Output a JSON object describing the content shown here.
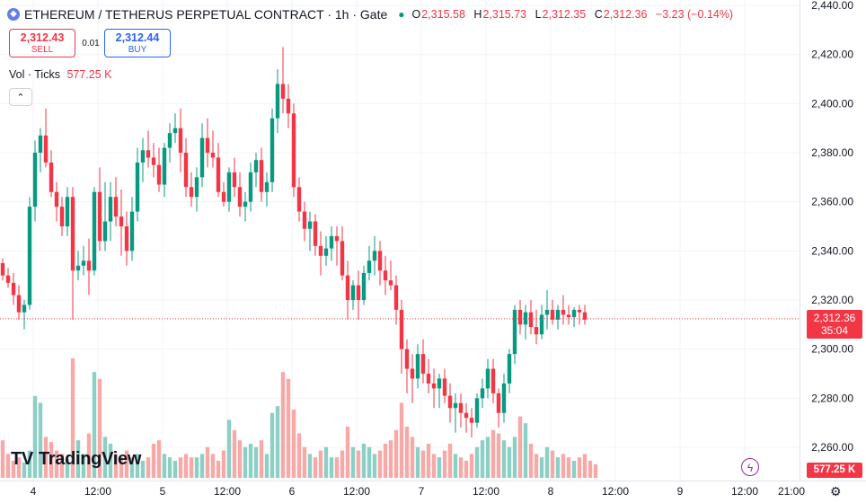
{
  "header": {
    "symbol_icon": "ethereum-icon",
    "title": "ETHEREUM / TETHERUS PERPETUAL CONTRACT · 1h · Gate",
    "status_dot": "●",
    "open_key": "O",
    "open": "2,315.58",
    "high_key": "H",
    "high": "2,315.73",
    "low_key": "L",
    "low": "2,312.35",
    "close_key": "C",
    "close": "2,312.36",
    "change": "−3.23 (−0.14%)"
  },
  "trade": {
    "sell_price": "2,312.43",
    "sell_label": "SELL",
    "spread": "0.01",
    "buy_price": "2,312.44",
    "buy_label": "BUY"
  },
  "volume": {
    "label": "Vol · Ticks",
    "value": "577.25 K"
  },
  "collapse_icon": "chevron-up-icon",
  "logo": {
    "mark": "TV",
    "text": "TradingView"
  },
  "last_price": {
    "price": "2,312.36",
    "countdown": "35:04"
  },
  "volume_tag": "577.25 K",
  "colors": {
    "up": "#089981",
    "down": "#f23645",
    "up_vol": "#8ccfc4",
    "down_vol": "#f7a9a7",
    "grid": "#f0f3fa"
  },
  "chart_data": {
    "type": "candlestick",
    "y_ticks": [
      "2,440.00",
      "2,420.00",
      "2,400.00",
      "2,380.00",
      "2,360.00",
      "2,340.00",
      "2,320.00",
      "2,300.00",
      "2,280.00",
      "2,260.00"
    ],
    "x_ticks": [
      "4",
      "12:00",
      "5",
      "12:00",
      "6",
      "12:00",
      "7",
      "12:00",
      "8",
      "12:00",
      "9",
      "12:00",
      "21:00"
    ],
    "ylim": [
      2250,
      2444
    ],
    "last_price": 2312.36,
    "candles": [
      [
        2335,
        2337,
        2328,
        2330
      ],
      [
        2330,
        2333,
        2325,
        2327
      ],
      [
        2327,
        2331,
        2318,
        2322
      ],
      [
        2322,
        2326,
        2312,
        2315
      ],
      [
        2315,
        2320,
        2308,
        2318
      ],
      [
        2318,
        2362,
        2316,
        2358
      ],
      [
        2358,
        2385,
        2352,
        2380
      ],
      [
        2380,
        2390,
        2372,
        2387
      ],
      [
        2387,
        2398,
        2374,
        2376
      ],
      [
        2376,
        2381,
        2362,
        2364
      ],
      [
        2364,
        2368,
        2352,
        2358
      ],
      [
        2358,
        2362,
        2346,
        2350
      ],
      [
        2350,
        2366,
        2346,
        2362
      ],
      [
        2362,
        2366,
        2312,
        2332
      ],
      [
        2332,
        2340,
        2328,
        2334
      ],
      [
        2334,
        2342,
        2330,
        2336
      ],
      [
        2336,
        2345,
        2322,
        2332
      ],
      [
        2332,
        2366,
        2330,
        2364
      ],
      [
        2364,
        2374,
        2340,
        2344
      ],
      [
        2344,
        2368,
        2340,
        2352
      ],
      [
        2352,
        2368,
        2344,
        2362
      ],
      [
        2362,
        2370,
        2350,
        2354
      ],
      [
        2354,
        2365,
        2338,
        2350
      ],
      [
        2350,
        2356,
        2334,
        2340
      ],
      [
        2340,
        2362,
        2336,
        2356
      ],
      [
        2356,
        2382,
        2352,
        2376
      ],
      [
        2376,
        2386,
        2368,
        2381
      ],
      [
        2381,
        2389,
        2374,
        2378
      ],
      [
        2378,
        2384,
        2370,
        2375
      ],
      [
        2375,
        2382,
        2364,
        2367
      ],
      [
        2367,
        2384,
        2362,
        2382
      ],
      [
        2382,
        2392,
        2376,
        2388
      ],
      [
        2388,
        2396,
        2384,
        2390
      ],
      [
        2390,
        2398,
        2372,
        2380
      ],
      [
        2380,
        2386,
        2362,
        2366
      ],
      [
        2366,
        2372,
        2358,
        2362
      ],
      [
        2362,
        2374,
        2356,
        2370
      ],
      [
        2370,
        2392,
        2366,
        2386
      ],
      [
        2386,
        2394,
        2374,
        2380
      ],
      [
        2380,
        2389,
        2374,
        2378
      ],
      [
        2378,
        2384,
        2362,
        2364
      ],
      [
        2364,
        2368,
        2358,
        2360
      ],
      [
        2360,
        2374,
        2356,
        2372
      ],
      [
        2372,
        2378,
        2362,
        2366
      ],
      [
        2366,
        2372,
        2354,
        2358
      ],
      [
        2358,
        2364,
        2352,
        2360
      ],
      [
        2360,
        2376,
        2356,
        2372
      ],
      [
        2372,
        2380,
        2366,
        2377
      ],
      [
        2377,
        2382,
        2360,
        2364
      ],
      [
        2364,
        2372,
        2358,
        2368
      ],
      [
        2368,
        2398,
        2364,
        2394
      ],
      [
        2394,
        2414,
        2388,
        2408
      ],
      [
        2408,
        2423,
        2396,
        2402
      ],
      [
        2402,
        2408,
        2390,
        2396
      ],
      [
        2396,
        2400,
        2362,
        2366
      ],
      [
        2366,
        2370,
        2352,
        2356
      ],
      [
        2356,
        2360,
        2344,
        2349
      ],
      [
        2349,
        2356,
        2340,
        2352
      ],
      [
        2352,
        2355,
        2338,
        2342
      ],
      [
        2342,
        2348,
        2330,
        2338
      ],
      [
        2338,
        2346,
        2334,
        2341
      ],
      [
        2341,
        2350,
        2336,
        2346
      ],
      [
        2346,
        2350,
        2334,
        2344
      ],
      [
        2344,
        2350,
        2328,
        2330
      ],
      [
        2330,
        2336,
        2312,
        2320
      ],
      [
        2320,
        2328,
        2316,
        2326
      ],
      [
        2326,
        2332,
        2312,
        2320
      ],
      [
        2320,
        2334,
        2318,
        2331
      ],
      [
        2331,
        2342,
        2328,
        2336
      ],
      [
        2336,
        2346,
        2330,
        2340
      ],
      [
        2340,
        2344,
        2326,
        2332
      ],
      [
        2332,
        2338,
        2322,
        2328
      ],
      [
        2328,
        2336,
        2324,
        2326
      ],
      [
        2326,
        2330,
        2310,
        2316
      ],
      [
        2316,
        2320,
        2290,
        2300
      ],
      [
        2300,
        2304,
        2282,
        2292
      ],
      [
        2292,
        2298,
        2278,
        2288
      ],
      [
        2288,
        2302,
        2284,
        2298
      ],
      [
        2298,
        2304,
        2286,
        2290
      ],
      [
        2290,
        2296,
        2282,
        2286
      ],
      [
        2286,
        2292,
        2276,
        2284
      ],
      [
        2284,
        2290,
        2276,
        2288
      ],
      [
        2288,
        2292,
        2278,
        2281
      ],
      [
        2281,
        2286,
        2270,
        2276
      ],
      [
        2276,
        2282,
        2266,
        2278
      ],
      [
        2278,
        2282,
        2268,
        2274
      ],
      [
        2274,
        2278,
        2266,
        2272
      ],
      [
        2272,
        2276,
        2264,
        2270
      ],
      [
        2270,
        2282,
        2268,
        2280
      ],
      [
        2280,
        2288,
        2276,
        2284
      ],
      [
        2284,
        2296,
        2280,
        2292
      ],
      [
        2292,
        2296,
        2278,
        2282
      ],
      [
        2282,
        2284,
        2268,
        2274
      ],
      [
        2274,
        2290,
        2270,
        2286
      ],
      [
        2286,
        2300,
        2282,
        2298
      ],
      [
        2298,
        2318,
        2294,
        2316
      ],
      [
        2316,
        2320,
        2306,
        2310
      ],
      [
        2310,
        2318,
        2304,
        2315
      ],
      [
        2315,
        2320,
        2306,
        2309
      ],
      [
        2309,
        2316,
        2302,
        2306
      ],
      [
        2306,
        2318,
        2304,
        2314
      ],
      [
        2314,
        2324,
        2308,
        2316
      ],
      [
        2316,
        2320,
        2310,
        2312
      ],
      [
        2312,
        2318,
        2308,
        2316
      ],
      [
        2316,
        2322,
        2310,
        2314
      ],
      [
        2314,
        2318,
        2310,
        2313
      ],
      [
        2313,
        2317,
        2309,
        2316
      ],
      [
        2316,
        2318,
        2310,
        2315
      ],
      [
        2315,
        2318,
        2310,
        2312
      ]
    ],
    "volumes": [
      22,
      14,
      10,
      12,
      9,
      16,
      48,
      44,
      24,
      21,
      16,
      14,
      11,
      70,
      22,
      14,
      26,
      62,
      58,
      24,
      20,
      14,
      12,
      16,
      12,
      14,
      10,
      12,
      20,
      22,
      14,
      12,
      10,
      12,
      14,
      12,
      12,
      14,
      18,
      14,
      10,
      16,
      34,
      28,
      22,
      18,
      20,
      18,
      22,
      14,
      38,
      42,
      62,
      58,
      40,
      26,
      18,
      14,
      12,
      16,
      18,
      12,
      12,
      16,
      30,
      18,
      16,
      20,
      18,
      14,
      16,
      20,
      22,
      28,
      44,
      30,
      24,
      18,
      16,
      20,
      14,
      12,
      16,
      20,
      14,
      12,
      10,
      14,
      18,
      22,
      24,
      28,
      26,
      22,
      18,
      24,
      36,
      32,
      20,
      14,
      12,
      18,
      16,
      12,
      14,
      12,
      10,
      12,
      14,
      10,
      8
    ]
  }
}
